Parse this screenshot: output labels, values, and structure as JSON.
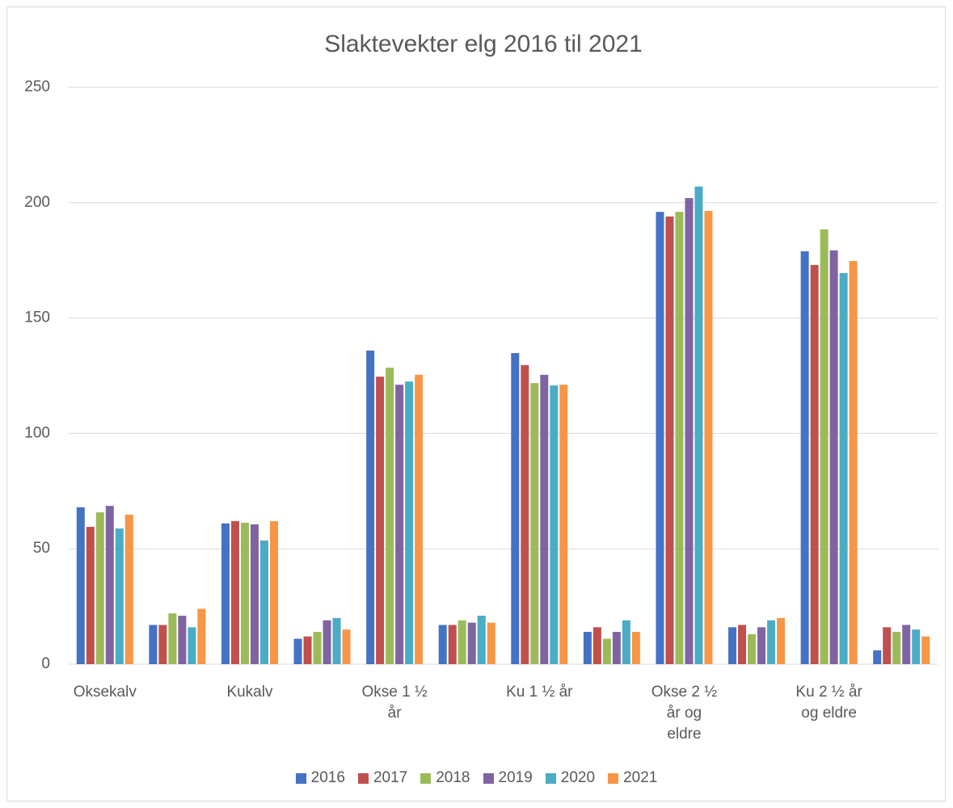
{
  "chart_data": {
    "type": "bar",
    "title": "Slaktevekter elg 2016 til 2021",
    "categories": [
      "Oksekalv",
      null,
      "Kukalv",
      null,
      "Okse 1 ½ år",
      null,
      "Ku 1 ½ år",
      null,
      "Okse 2 ½ år og eldre",
      null,
      "Ku 2 ½ år og eldre",
      null
    ],
    "series": [
      {
        "name": "2016",
        "color": "#4472c4",
        "values": [
          68,
          17,
          61,
          11,
          135.9,
          17,
          134.8,
          14,
          196,
          16,
          178.9,
          6
        ]
      },
      {
        "name": "2017",
        "color": "#c0504d",
        "values": [
          59.5,
          17,
          62,
          12,
          124.6,
          17,
          129.6,
          16,
          194,
          17,
          173,
          16
        ]
      },
      {
        "name": "2018",
        "color": "#9bbb59",
        "values": [
          65.8,
          22,
          61.3,
          14,
          128.5,
          19,
          121.8,
          11,
          196,
          13,
          188.4,
          14
        ]
      },
      {
        "name": "2019",
        "color": "#8064a2",
        "values": [
          68.6,
          21,
          60.6,
          19,
          121.1,
          18,
          125.4,
          14,
          202,
          16,
          179.3,
          17
        ]
      },
      {
        "name": "2020",
        "color": "#4bacc6",
        "values": [
          58.8,
          16,
          53.6,
          20,
          122.5,
          21,
          120.8,
          19,
          207,
          19,
          169.5,
          15
        ]
      },
      {
        "name": "2021",
        "color": "#f79646",
        "values": [
          64.8,
          24,
          62,
          15,
          125.4,
          18,
          121.1,
          14,
          196.4,
          20,
          174.7,
          12
        ]
      }
    ],
    "ylim": [
      0,
      250
    ],
    "yticks": [
      0,
      50,
      100,
      150,
      200,
      250
    ],
    "grid": true,
    "legend": "bottom"
  }
}
